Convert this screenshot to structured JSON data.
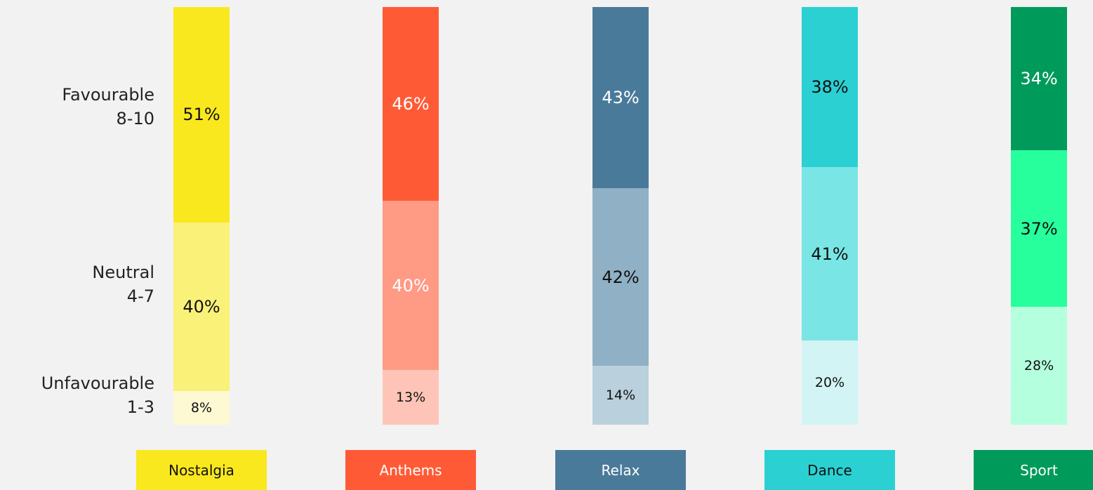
{
  "chart_data": {
    "type": "stacked_bar",
    "categories": [
      "Nostalgia",
      "Anthems",
      "Relax",
      "Dance",
      "Sport"
    ],
    "ylim": [
      0,
      99
    ],
    "series": [
      {
        "name": "Unfavourable\n1-3",
        "values": [
          8,
          13,
          14,
          20,
          28
        ],
        "colors": [
          "#fdf9d3",
          "#ffc4b8",
          "#bad0dc",
          "#d3f4f4",
          "#b4ffdd"
        ],
        "label_colors": [
          "#111111",
          "#111111",
          "#111111",
          "#111111",
          "#111111"
        ]
      },
      {
        "name": "Neutral\n4-7",
        "values": [
          40,
          40,
          42,
          41,
          37
        ],
        "colors": [
          "#faf179",
          "#ff9a84",
          "#8fb0c5",
          "#7ae5e5",
          "#27ff9c"
        ],
        "label_colors": [
          "#111111",
          "#ffffff",
          "#111111",
          "#111111",
          "#111111"
        ]
      },
      {
        "name": "Favourable\n8-10",
        "values": [
          51,
          46,
          43,
          38,
          34
        ],
        "colors": [
          "#f9e81e",
          "#ff5a36",
          "#4a7a99",
          "#2bd0d2",
          "#009a5a"
        ],
        "label_colors": [
          "#111111",
          "#ffffff",
          "#ffffff",
          "#111111",
          "#ffffff"
        ]
      }
    ],
    "legend_text_colors": [
      "#111111",
      "#ffffff",
      "#ffffff",
      "#111111",
      "#ffffff"
    ]
  }
}
